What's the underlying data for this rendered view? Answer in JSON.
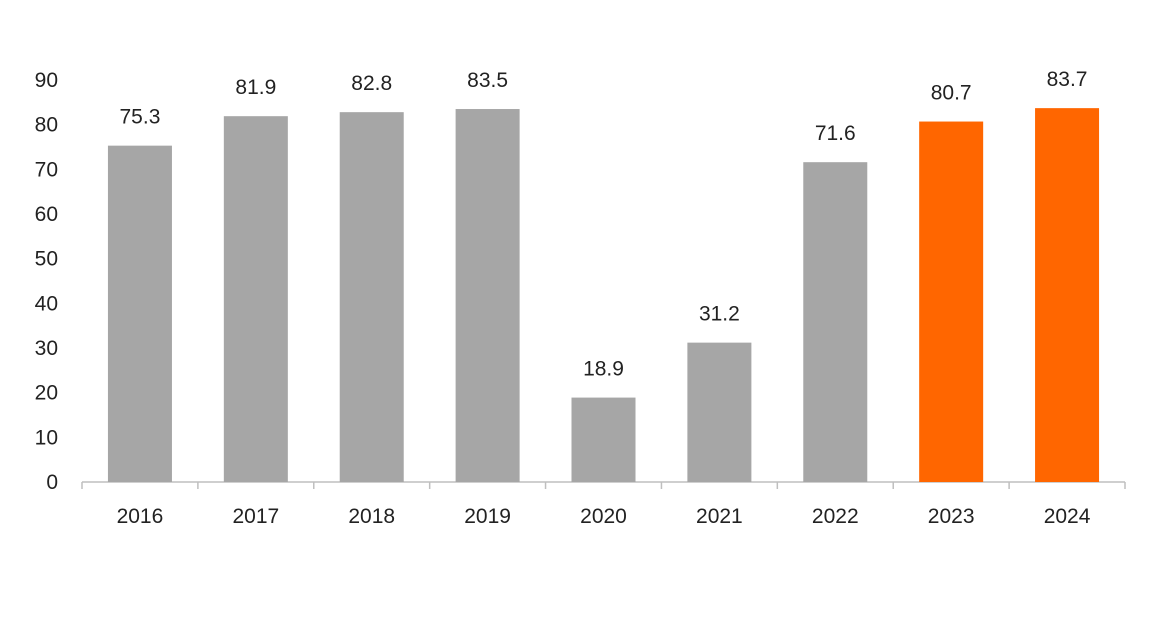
{
  "chart_data": {
    "type": "bar",
    "title": "",
    "xlabel": "",
    "ylabel": "",
    "categories": [
      "2016",
      "2017",
      "2018",
      "2019",
      "2020",
      "2021",
      "2022",
      "2023",
      "2024"
    ],
    "values": [
      75.3,
      81.9,
      82.8,
      83.5,
      18.9,
      31.2,
      71.6,
      80.7,
      83.7
    ],
    "value_labels": [
      "75.3",
      "81.9",
      "82.8",
      "83.5",
      "18.9",
      "31.2",
      "71.6",
      "80.7",
      "83.7"
    ],
    "highlighted": [
      false,
      false,
      false,
      false,
      false,
      false,
      false,
      true,
      true
    ],
    "ylim": [
      0,
      90
    ],
    "y_ticks": [
      "0",
      "10",
      "20",
      "30",
      "40",
      "50",
      "60",
      "70",
      "80",
      "90"
    ],
    "grid": false,
    "legend": "none"
  },
  "colors": {
    "bar_default": "#a6a6a6",
    "bar_highlight": "#ff6600",
    "axis": "#bfbfbf",
    "text": "#222222"
  }
}
